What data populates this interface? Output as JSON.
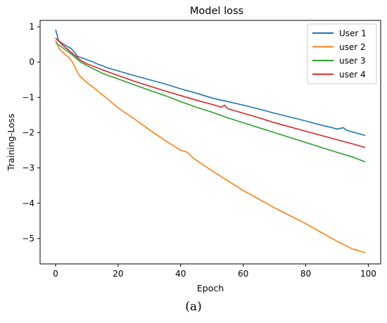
{
  "figure": {
    "caption": "(a)"
  },
  "chart_data": {
    "type": "line",
    "title": "Model loss",
    "xlabel": "Epoch",
    "ylabel": "Training-Loss",
    "xlim": [
      -4.95,
      103.95
    ],
    "ylim": [
      -5.72,
      1.18
    ],
    "xticks": [
      0,
      20,
      40,
      60,
      80,
      100
    ],
    "yticks": [
      1,
      0,
      -1,
      -2,
      -3,
      -4,
      -5
    ],
    "grid": false,
    "legend": "top-right",
    "series": [
      {
        "name": "User 1",
        "color": "#1f77b4",
        "x": [
          0,
          1,
          3,
          5,
          6,
          7,
          9,
          12,
          14,
          15,
          16,
          20,
          25,
          30,
          35,
          40,
          45,
          50,
          55,
          60,
          65,
          70,
          75,
          80,
          85,
          88,
          90,
          91,
          92,
          93,
          95,
          99
        ],
        "y": [
          0.92,
          0.6,
          0.48,
          0.38,
          0.28,
          0.16,
          0.1,
          0.0,
          -0.08,
          -0.1,
          -0.15,
          -0.25,
          -0.38,
          -0.5,
          -0.62,
          -0.76,
          -0.88,
          -1.02,
          -1.12,
          -1.22,
          -1.33,
          -1.45,
          -1.56,
          -1.67,
          -1.79,
          -1.85,
          -1.9,
          -1.88,
          -1.86,
          -1.93,
          -1.98,
          -2.08
        ]
      },
      {
        "name": "user 2",
        "color": "#ff7f0e",
        "x": [
          0,
          1,
          2,
          3,
          4,
          5,
          6,
          7,
          8,
          10,
          12,
          14,
          16,
          20,
          25,
          30,
          35,
          40,
          42,
          44,
          50,
          60,
          70,
          80,
          90,
          95,
          99
        ],
        "y": [
          0.62,
          0.4,
          0.3,
          0.22,
          0.15,
          0.05,
          -0.1,
          -0.3,
          -0.42,
          -0.58,
          -0.72,
          -0.86,
          -1.0,
          -1.3,
          -1.6,
          -1.92,
          -2.22,
          -2.5,
          -2.55,
          -2.72,
          -3.08,
          -3.64,
          -4.13,
          -4.58,
          -5.08,
          -5.3,
          -5.4
        ]
      },
      {
        "name": "user 3",
        "color": "#2ca02c",
        "x": [
          0,
          2,
          4,
          6,
          8,
          10,
          15,
          20,
          25,
          30,
          35,
          40,
          45,
          50,
          55,
          60,
          65,
          70,
          75,
          80,
          85,
          90,
          95,
          99
        ],
        "y": [
          0.55,
          0.42,
          0.3,
          0.15,
          0.0,
          -0.1,
          -0.32,
          -0.48,
          -0.64,
          -0.8,
          -0.95,
          -1.12,
          -1.28,
          -1.42,
          -1.58,
          -1.72,
          -1.86,
          -2.0,
          -2.14,
          -2.28,
          -2.42,
          -2.56,
          -2.69,
          -2.83
        ]
      },
      {
        "name": "user 4",
        "color": "#d62728",
        "x": [
          0,
          2,
          4,
          6,
          8,
          10,
          15,
          20,
          25,
          30,
          35,
          40,
          45,
          50,
          53,
          54,
          55,
          60,
          65,
          70,
          75,
          80,
          85,
          90,
          95,
          99
        ],
        "y": [
          0.68,
          0.5,
          0.35,
          0.2,
          0.05,
          -0.05,
          -0.22,
          -0.38,
          -0.54,
          -0.68,
          -0.82,
          -0.95,
          -1.08,
          -1.2,
          -1.28,
          -1.22,
          -1.32,
          -1.45,
          -1.58,
          -1.72,
          -1.84,
          -1.96,
          -2.08,
          -2.2,
          -2.32,
          -2.42
        ]
      }
    ]
  }
}
